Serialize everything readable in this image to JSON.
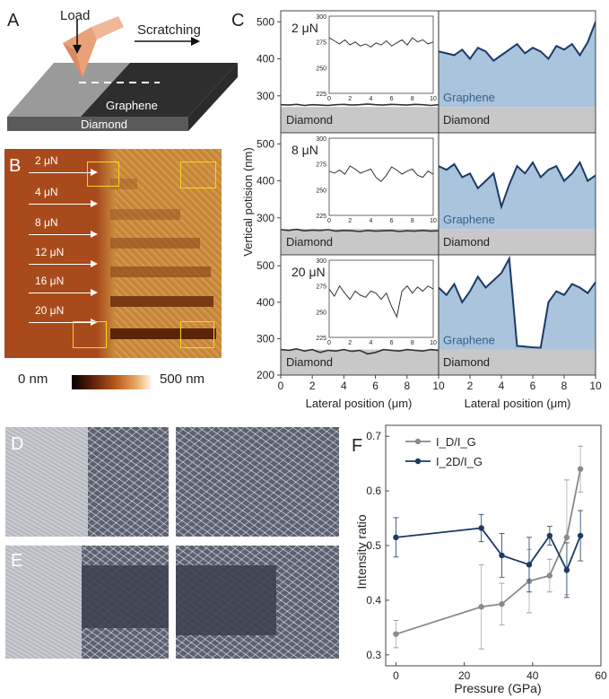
{
  "labels": {
    "a": "A",
    "b": "B",
    "c": "C",
    "d": "D",
    "e": "E",
    "f": "F"
  },
  "panel_a": {
    "load": "Load",
    "scratching": "Scratching",
    "graphene": "Graphene",
    "diamond": "Diamond"
  },
  "panel_b": {
    "loads": [
      "2 μN",
      "4 μN",
      "8 μN",
      "12 μN",
      "16 μN",
      "20 μN"
    ],
    "scale_min": "0 nm",
    "scale_max": "500 nm",
    "colors": {
      "substrate": "#a84a1c",
      "graphene": "#d69a4a",
      "box": "#f2d81a"
    }
  },
  "panel_c": {
    "ylabel": "Vertical potision (nm)",
    "xlabel": "Lateral position (μm)",
    "yticks": [
      "200",
      "300",
      "400",
      "500"
    ],
    "xticks": [
      "0",
      "2",
      "4",
      "6",
      "8",
      "10"
    ],
    "diamond": "Diamond",
    "graphene": "Graphene",
    "rows": [
      {
        "load": "2 μN",
        "diamond_profile": [
          276,
          275,
          277,
          274,
          276,
          275,
          274,
          276,
          277,
          275,
          276,
          278,
          276,
          275,
          277,
          276,
          275,
          277,
          276,
          274,
          276
        ],
        "graphene_profile": [
          420,
          415,
          410,
          425,
          400,
          430,
          420,
          395,
          410,
          425,
          440,
          415,
          430,
          420,
          400,
          435,
          425,
          440,
          410,
          445,
          500
        ],
        "inset": [
          279,
          276,
          273,
          277,
          272,
          275,
          271,
          273,
          270,
          274,
          272,
          276,
          271,
          274,
          277,
          272,
          279,
          275,
          277,
          273,
          275
        ]
      },
      {
        "load": "8 μN",
        "diamond_profile": [
          268,
          266,
          269,
          265,
          267,
          266,
          268,
          264,
          266,
          265,
          263,
          266,
          264,
          265,
          266,
          263,
          265,
          264,
          266,
          264,
          265
        ],
        "graphene_profile": [
          440,
          430,
          445,
          410,
          420,
          380,
          400,
          420,
          330,
          390,
          440,
          420,
          450,
          410,
          430,
          440,
          400,
          420,
          450,
          400,
          415
        ],
        "inset": [
          268,
          266,
          269,
          265,
          273,
          270,
          266,
          268,
          270,
          262,
          258,
          264,
          272,
          269,
          265,
          268,
          270,
          264,
          262,
          268,
          265
        ]
      },
      {
        "load": "20 μN",
        "diamond_profile": [
          270,
          268,
          272,
          266,
          270,
          262,
          268,
          266,
          270,
          265,
          268,
          258,
          262,
          270,
          268,
          266,
          270,
          268,
          266,
          270,
          268
        ],
        "graphene_profile": [
          440,
          420,
          450,
          400,
          430,
          470,
          440,
          460,
          480,
          520,
          280,
          278,
          276,
          275,
          400,
          430,
          420,
          450,
          440,
          425,
          455
        ],
        "inset": [
          272,
          265,
          275,
          268,
          262,
          270,
          266,
          264,
          270,
          268,
          262,
          268,
          255,
          245,
          270,
          275,
          268,
          274,
          270,
          275,
          272
        ]
      }
    ],
    "inset_yticks": [
      "225",
      "250",
      "275",
      "300"
    ],
    "inset_xticks": [
      "0",
      "2",
      "4",
      "6",
      "8",
      "10"
    ],
    "colors": {
      "profile": "#1b3a66",
      "graphene_fill": "#a9c4dc",
      "diamond_fill": "#c8c8c8",
      "inset_line": "#333333"
    }
  },
  "chart_data": {
    "type": "line",
    "xlabel": "Pressure (GPa)",
    "ylabel": "Intensity ratio",
    "xlim": [
      -3,
      60
    ],
    "ylim": [
      0.28,
      0.72
    ],
    "xticks": [
      "0",
      "20",
      "40",
      "60"
    ],
    "yticks": [
      "0.3",
      "0.4",
      "0.5",
      "0.6",
      "0.7"
    ],
    "legend_position": "top-left",
    "series": [
      {
        "name": "I_D/I_G",
        "color": "#8a8a8a",
        "x": [
          0,
          25,
          31,
          39,
          45,
          50,
          54
        ],
        "values": [
          0.338,
          0.388,
          0.393,
          0.435,
          0.445,
          0.515,
          0.64
        ],
        "errors": [
          0.025,
          0.077,
          0.038,
          0.058,
          0.03,
          0.105,
          0.042
        ]
      },
      {
        "name": "I_2D/I_G",
        "color": "#1b3a66",
        "x": [
          0,
          25,
          31,
          39,
          45,
          50,
          54
        ],
        "values": [
          0.515,
          0.532,
          0.482,
          0.465,
          0.518,
          0.455,
          0.518
        ],
        "errors": [
          0.036,
          0.025,
          0.04,
          0.05,
          0.017,
          0.05,
          0.046
        ]
      }
    ]
  }
}
